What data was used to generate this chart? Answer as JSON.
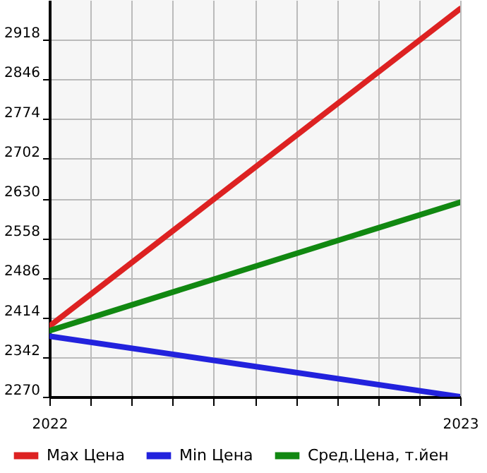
{
  "chart_data": {
    "type": "line",
    "x": [
      2022,
      2023
    ],
    "series": [
      {
        "name": "Max Цена",
        "color": "#dd2222",
        "values": [
          2398,
          2974
        ]
      },
      {
        "name": "Min Цена",
        "color": "#2222dd",
        "values": [
          2380,
          2270
        ]
      },
      {
        "name": "Сред.Цена, т.йен",
        "color": "#118811",
        "values": [
          2390,
          2623
        ]
      }
    ],
    "xlim": [
      2022,
      2023
    ],
    "xticks": [
      2022,
      {
        "value": 2022.1,
        "label": null
      },
      {
        "value": 2022.2,
        "label": null
      },
      {
        "value": 2022.3,
        "label": null
      },
      {
        "value": 2022.4,
        "label": null
      },
      {
        "value": 2022.5,
        "label": null
      },
      {
        "value": 2022.6,
        "label": null
      },
      {
        "value": 2022.7,
        "label": null
      },
      {
        "value": 2022.8,
        "label": null
      },
      {
        "value": 2022.9,
        "label": null
      },
      2023
    ],
    "ylim": [
      2270,
      2990
    ],
    "yticks": [
      2270,
      2342,
      2414,
      2486,
      2558,
      2630,
      2702,
      2774,
      2846,
      2918
    ],
    "grid": true,
    "legend": "bottom",
    "marker": "none",
    "line_style": "solid"
  }
}
